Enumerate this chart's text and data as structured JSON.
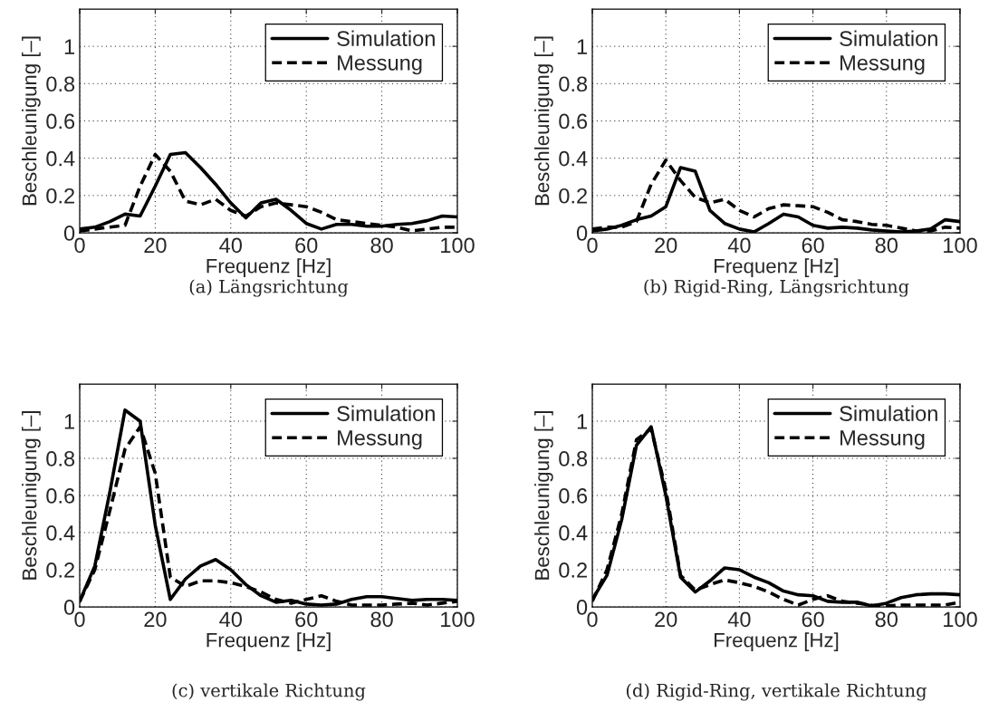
{
  "chart_data": [
    {
      "type": "line",
      "xlabel": "Frequenz [Hz]",
      "ylabel": "Beschleunigung [–]",
      "xlim": [
        0,
        100
      ],
      "ylim": [
        0,
        1.2
      ],
      "xticks": [
        0,
        20,
        40,
        60,
        80,
        100
      ],
      "yticks": [
        0,
        0.2,
        0.4,
        0.6,
        0.8,
        1
      ],
      "grid": true,
      "legend": "top right",
      "annotations": [
        "(a) Längsrichtung"
      ],
      "x": [
        0,
        4,
        8,
        12,
        16,
        20,
        24,
        28,
        32,
        36,
        40,
        44,
        48,
        52,
        56,
        60,
        64,
        68,
        72,
        76,
        80,
        84,
        88,
        92,
        96,
        100
      ],
      "series": [
        {
          "name": "Simulation",
          "color": "#000000",
          "line_style": "solid",
          "values": [
            0.02,
            0.03,
            0.06,
            0.1,
            0.09,
            0.25,
            0.42,
            0.43,
            0.35,
            0.26,
            0.16,
            0.08,
            0.16,
            0.18,
            0.12,
            0.05,
            0.02,
            0.045,
            0.045,
            0.035,
            0.035,
            0.045,
            0.05,
            0.065,
            0.09,
            0.085
          ]
        },
        {
          "name": "Messung",
          "color": "#000000",
          "line_style": "dashed",
          "values": [
            0.01,
            0.02,
            0.03,
            0.04,
            0.25,
            0.42,
            0.33,
            0.17,
            0.15,
            0.18,
            0.12,
            0.09,
            0.14,
            0.16,
            0.15,
            0.14,
            0.11,
            0.07,
            0.06,
            0.05,
            0.04,
            0.03,
            0.01,
            0.02,
            0.03,
            0.03
          ]
        }
      ]
    },
    {
      "type": "line",
      "xlabel": "Frequenz [Hz]",
      "ylabel": "Beschleunigung [–]",
      "xlim": [
        0,
        100
      ],
      "ylim": [
        0,
        1.2
      ],
      "xticks": [
        0,
        20,
        40,
        60,
        80,
        100
      ],
      "yticks": [
        0,
        0.2,
        0.4,
        0.6,
        0.8,
        1
      ],
      "grid": true,
      "legend": "top right",
      "annotations": [
        "(b) Rigid-Ring, Längsrichtung"
      ],
      "x": [
        0,
        4,
        8,
        12,
        16,
        20,
        24,
        28,
        32,
        36,
        40,
        44,
        48,
        52,
        56,
        60,
        64,
        68,
        72,
        76,
        80,
        84,
        88,
        92,
        96,
        100
      ],
      "series": [
        {
          "name": "Simulation",
          "color": "#000000",
          "line_style": "solid",
          "values": [
            0.01,
            0.02,
            0.04,
            0.07,
            0.09,
            0.14,
            0.35,
            0.33,
            0.12,
            0.05,
            0.02,
            0.005,
            0.05,
            0.1,
            0.085,
            0.04,
            0.025,
            0.03,
            0.025,
            0.015,
            0.01,
            0.005,
            0.01,
            0.02,
            0.07,
            0.06
          ]
        },
        {
          "name": "Messung",
          "color": "#000000",
          "line_style": "dashed",
          "values": [
            0.02,
            0.03,
            0.03,
            0.06,
            0.26,
            0.39,
            0.28,
            0.19,
            0.16,
            0.18,
            0.12,
            0.085,
            0.13,
            0.15,
            0.145,
            0.14,
            0.11,
            0.07,
            0.06,
            0.045,
            0.04,
            0.025,
            0.01,
            0.01,
            0.03,
            0.025
          ]
        }
      ]
    },
    {
      "type": "line",
      "xlabel": "Frequenz [Hz]",
      "ylabel": "Beschleunigung [–]",
      "xlim": [
        0,
        100
      ],
      "ylim": [
        0,
        1.2
      ],
      "xticks": [
        0,
        20,
        40,
        60,
        80,
        100
      ],
      "yticks": [
        0,
        0.2,
        0.4,
        0.6,
        0.8,
        1
      ],
      "grid": true,
      "legend": "top right",
      "annotations": [
        "(c) vertikale Richtung"
      ],
      "x": [
        0,
        4,
        8,
        12,
        16,
        20,
        24,
        28,
        32,
        36,
        40,
        44,
        48,
        52,
        56,
        60,
        64,
        68,
        72,
        76,
        80,
        84,
        88,
        92,
        96,
        100
      ],
      "series": [
        {
          "name": "Simulation",
          "color": "#000000",
          "line_style": "solid",
          "values": [
            0.03,
            0.22,
            0.62,
            1.06,
            1.0,
            0.44,
            0.04,
            0.15,
            0.22,
            0.255,
            0.2,
            0.12,
            0.06,
            0.025,
            0.035,
            0.015,
            0.01,
            0.015,
            0.04,
            0.055,
            0.055,
            0.045,
            0.035,
            0.04,
            0.04,
            0.035
          ]
        },
        {
          "name": "Messung",
          "color": "#000000",
          "line_style": "dashed",
          "values": [
            0.03,
            0.2,
            0.52,
            0.85,
            0.97,
            0.72,
            0.16,
            0.11,
            0.14,
            0.14,
            0.13,
            0.11,
            0.08,
            0.04,
            0.02,
            0.04,
            0.06,
            0.03,
            0.01,
            0.01,
            0.01,
            0.015,
            0.02,
            0.01,
            0.02,
            0.03
          ]
        }
      ]
    },
    {
      "type": "line",
      "xlabel": "Frequenz [Hz]",
      "ylabel": "Beschleunigung [–]",
      "xlim": [
        0,
        100
      ],
      "ylim": [
        0,
        1.2
      ],
      "xticks": [
        0,
        20,
        40,
        60,
        80,
        100
      ],
      "yticks": [
        0,
        0.2,
        0.4,
        0.6,
        0.8,
        1
      ],
      "grid": true,
      "legend": "top right",
      "annotations": [
        "(d) Rigid-Ring, vertikale Richtung"
      ],
      "x": [
        0,
        4,
        8,
        12,
        16,
        20,
        24,
        28,
        32,
        36,
        40,
        44,
        48,
        52,
        56,
        60,
        64,
        68,
        72,
        76,
        80,
        84,
        88,
        92,
        96,
        100
      ],
      "series": [
        {
          "name": "Simulation",
          "color": "#000000",
          "line_style": "solid",
          "values": [
            0.04,
            0.17,
            0.47,
            0.87,
            0.97,
            0.6,
            0.16,
            0.08,
            0.14,
            0.21,
            0.2,
            0.16,
            0.13,
            0.085,
            0.065,
            0.06,
            0.03,
            0.025,
            0.025,
            0.005,
            0.02,
            0.05,
            0.065,
            0.07,
            0.07,
            0.065
          ]
        },
        {
          "name": "Messung",
          "color": "#000000",
          "line_style": "dashed",
          "values": [
            0.03,
            0.2,
            0.5,
            0.9,
            0.96,
            0.63,
            0.17,
            0.09,
            0.12,
            0.145,
            0.13,
            0.11,
            0.08,
            0.04,
            0.01,
            0.04,
            0.06,
            0.03,
            0.02,
            0.01,
            0.005,
            0.01,
            0.01,
            0.01,
            0.01,
            0.025
          ]
        }
      ]
    }
  ]
}
